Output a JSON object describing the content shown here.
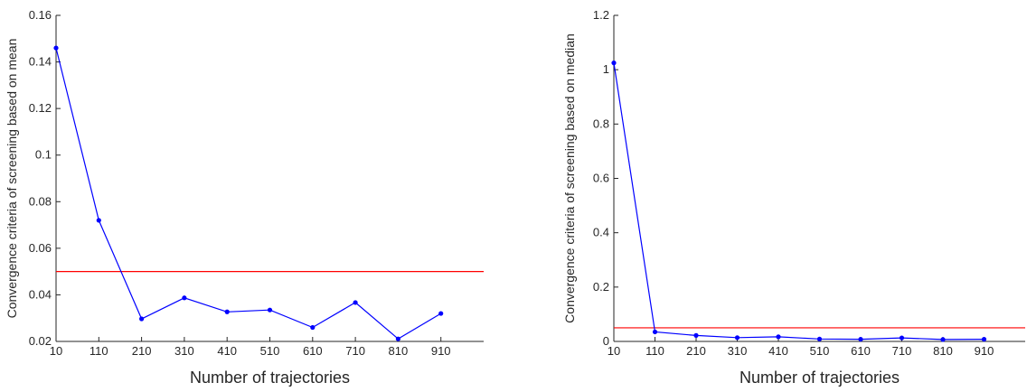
{
  "chart_data": [
    {
      "type": "line",
      "xlabel": "Number of trajectories",
      "ylabel": "Convergence criteria of screening based on mean",
      "x": [
        10,
        110,
        210,
        310,
        410,
        510,
        610,
        710,
        810,
        910
      ],
      "xlim": [
        10,
        1010
      ],
      "xticks": [
        10,
        110,
        210,
        310,
        410,
        510,
        610,
        710,
        810,
        910
      ],
      "ylim": [
        0.02,
        0.16
      ],
      "yticks": [
        0.02,
        0.04,
        0.06,
        0.08,
        0.1,
        0.12,
        0.14,
        0.16
      ],
      "ytick_labels": [
        "0.02",
        "0.04",
        "0.06",
        "0.08",
        "0.1",
        "0.12",
        "0.14",
        "0.16"
      ],
      "series": [
        {
          "values": [
            0.146,
            0.072,
            0.0297,
            0.0387,
            0.0327,
            0.0335,
            0.026,
            0.0367,
            0.0211,
            0.032
          ],
          "color": "#0000ff",
          "marker": "dot"
        }
      ],
      "reference_line": {
        "y": 0.05,
        "color": "#ff0000"
      }
    },
    {
      "type": "line",
      "xlabel": "Number of trajectories",
      "ylabel": "Convergence criteria of screening based on median",
      "x": [
        10,
        110,
        210,
        310,
        410,
        510,
        610,
        710,
        810,
        910
      ],
      "xlim": [
        10,
        1010
      ],
      "xticks": [
        10,
        110,
        210,
        310,
        410,
        510,
        610,
        710,
        810,
        910
      ],
      "ylim": [
        0,
        1.2
      ],
      "yticks": [
        0,
        0.2,
        0.4,
        0.6,
        0.8,
        1,
        1.2
      ],
      "ytick_labels": [
        "0",
        "0.2",
        "0.4",
        "0.6",
        "0.8",
        "1",
        "1.2"
      ],
      "series": [
        {
          "values": [
            1.025,
            0.035,
            0.022,
            0.014,
            0.017,
            0.009,
            0.008,
            0.013,
            0.007,
            0.008
          ],
          "color": "#0000ff",
          "marker": "dot"
        }
      ],
      "reference_line": {
        "y": 0.05,
        "color": "#ff0000"
      }
    }
  ]
}
